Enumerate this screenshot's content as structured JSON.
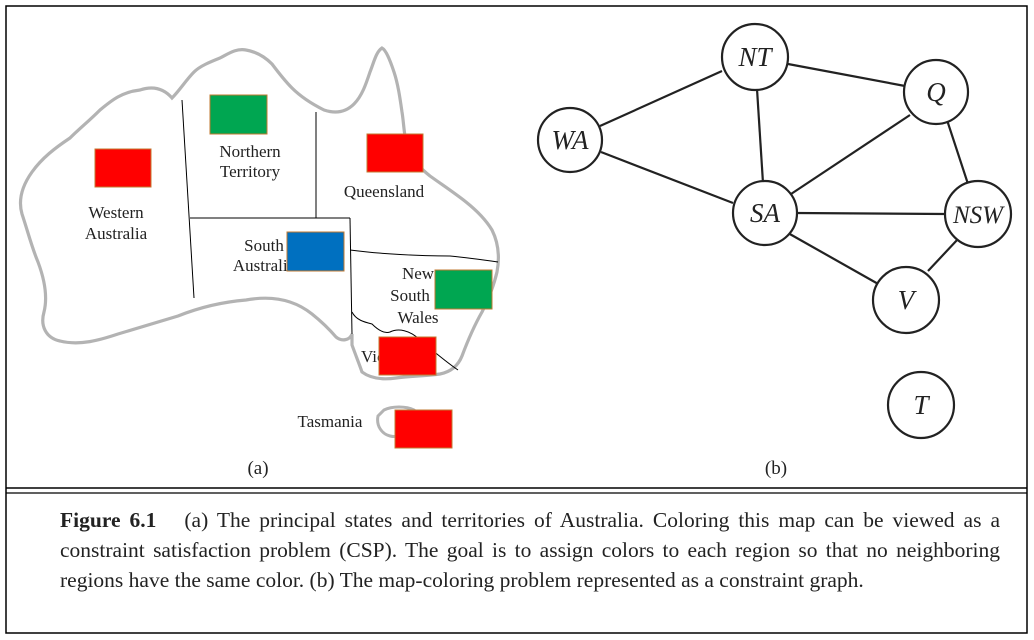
{
  "panel_a": {
    "label": "(a)",
    "regions": [
      {
        "id": "wa",
        "name_lines": [
          "Western",
          "Australia"
        ],
        "color": "#ff0000"
      },
      {
        "id": "nt",
        "name_lines": [
          "Northern",
          "Territory"
        ],
        "color": "#00a651"
      },
      {
        "id": "q",
        "name_lines": [
          "Queensland"
        ],
        "color": "#ff0000"
      },
      {
        "id": "sa",
        "name_lines": [
          "South",
          "Australia"
        ],
        "color": "#0070c0"
      },
      {
        "id": "nsw",
        "name_lines": [
          "New",
          "South",
          "Wales"
        ],
        "color": "#00a651"
      },
      {
        "id": "v",
        "name_lines": [
          "Victoria"
        ],
        "color": "#ff0000"
      },
      {
        "id": "t",
        "name_lines": [
          "Tasmania"
        ],
        "color": "#ff0000"
      }
    ]
  },
  "panel_b": {
    "label": "(b)",
    "nodes": [
      {
        "id": "WA",
        "label": "WA"
      },
      {
        "id": "NT",
        "label": "NT"
      },
      {
        "id": "Q",
        "label": "Q"
      },
      {
        "id": "SA",
        "label": "SA"
      },
      {
        "id": "NSW",
        "label": "NSW"
      },
      {
        "id": "V",
        "label": "V"
      },
      {
        "id": "T",
        "label": "T"
      }
    ],
    "edges": [
      [
        "WA",
        "NT"
      ],
      [
        "WA",
        "SA"
      ],
      [
        "NT",
        "SA"
      ],
      [
        "NT",
        "Q"
      ],
      [
        "SA",
        "Q"
      ],
      [
        "SA",
        "NSW"
      ],
      [
        "SA",
        "V"
      ],
      [
        "Q",
        "NSW"
      ],
      [
        "NSW",
        "V"
      ]
    ]
  },
  "caption": {
    "label": "Figure 6.1",
    "text": "(a) The principal states and territories of Australia. Coloring this map can be viewed as a constraint satisfaction problem (CSP). The goal is to assign colors to each region so that no neighboring regions have the same color. (b) The map-coloring problem represented as a constraint graph."
  },
  "colors": {
    "outline": "#b3b3b3",
    "border": "#000000",
    "swatch_edge": "#c07830"
  }
}
